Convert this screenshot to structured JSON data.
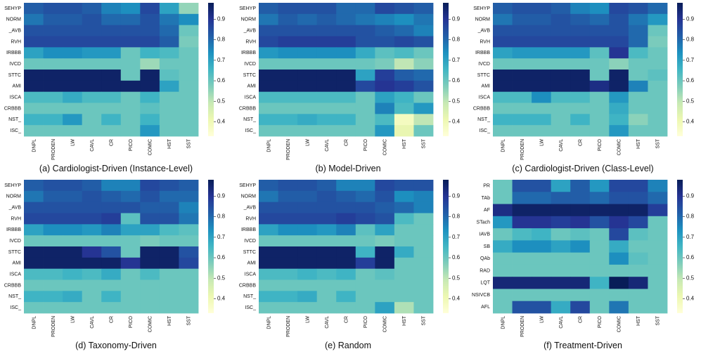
{
  "colormap": {
    "name": "YlGnBu",
    "stops": [
      "#ffffd9",
      "#edf8b1",
      "#c7e9b4",
      "#7fcdbb",
      "#41b6c4",
      "#1d91c0",
      "#225ea8",
      "#253494",
      "#081d58"
    ],
    "vmin": 0.33,
    "vmax": 0.98,
    "ticks": [
      "0.4",
      "0.5",
      "0.6",
      "0.7",
      "0.8",
      "0.9"
    ]
  },
  "chart_data": [
    {
      "type": "heatmap",
      "title": "(a) Cardiologist-Driven (Instance-Level)",
      "xlabels": [
        "DNPL",
        "PRODEN",
        "LW",
        "CAVL",
        "CR",
        "PICO",
        "COMIC",
        "HST",
        "SST"
      ],
      "ylabels": [
        "SEHYP",
        "NORM",
        "_AVB",
        "RVH",
        "IRBBB",
        "IVCD",
        "STTC",
        "AMI",
        "ISCA",
        "CRBBB",
        "NST_",
        "ISC_"
      ],
      "values": [
        [
          0.82,
          0.84,
          0.84,
          0.82,
          0.76,
          0.74,
          0.86,
          0.7,
          0.55
        ],
        [
          0.78,
          0.82,
          0.82,
          0.84,
          0.8,
          0.8,
          0.84,
          0.78,
          0.74
        ],
        [
          0.84,
          0.84,
          0.84,
          0.84,
          0.84,
          0.84,
          0.84,
          0.8,
          0.6
        ],
        [
          0.86,
          0.86,
          0.86,
          0.86,
          0.86,
          0.86,
          0.86,
          0.82,
          0.58
        ],
        [
          0.7,
          0.74,
          0.74,
          0.72,
          0.72,
          0.6,
          0.66,
          0.64,
          0.6
        ],
        [
          0.6,
          0.6,
          0.6,
          0.6,
          0.6,
          0.6,
          0.54,
          0.6,
          0.6
        ],
        [
          0.96,
          0.96,
          0.96,
          0.96,
          0.96,
          0.6,
          0.96,
          0.62,
          0.6
        ],
        [
          0.96,
          0.96,
          0.96,
          0.96,
          0.96,
          0.96,
          0.96,
          0.7,
          0.6
        ],
        [
          0.64,
          0.64,
          0.68,
          0.64,
          0.64,
          0.6,
          0.66,
          0.6,
          0.6
        ],
        [
          0.6,
          0.6,
          0.6,
          0.6,
          0.6,
          0.6,
          0.62,
          0.6,
          0.6
        ],
        [
          0.66,
          0.66,
          0.72,
          0.6,
          0.66,
          0.6,
          0.66,
          0.6,
          0.6
        ],
        [
          0.6,
          0.6,
          0.6,
          0.6,
          0.6,
          0.6,
          0.72,
          0.6,
          0.6
        ]
      ]
    },
    {
      "type": "heatmap",
      "title": "(b) Model-Driven",
      "xlabels": [
        "DNPL",
        "PRODEN",
        "LW",
        "CAVL",
        "CR",
        "PICO",
        "COMIC",
        "HST",
        "SST"
      ],
      "ylabels": [
        "SEHYP",
        "NORM",
        "_AVB",
        "RVH",
        "IRBBB",
        "IVCD",
        "STTC",
        "AMI",
        "ISCA",
        "CRBBB",
        "NST_",
        "ISC_"
      ],
      "values": [
        [
          0.82,
          0.84,
          0.84,
          0.84,
          0.8,
          0.8,
          0.86,
          0.84,
          0.82
        ],
        [
          0.78,
          0.82,
          0.8,
          0.82,
          0.8,
          0.78,
          0.76,
          0.74,
          0.78
        ],
        [
          0.84,
          0.84,
          0.84,
          0.84,
          0.84,
          0.84,
          0.82,
          0.8,
          0.76
        ],
        [
          0.86,
          0.88,
          0.88,
          0.88,
          0.88,
          0.84,
          0.84,
          0.86,
          0.84
        ],
        [
          0.72,
          0.74,
          0.74,
          0.74,
          0.74,
          0.68,
          0.62,
          0.64,
          0.6
        ],
        [
          0.6,
          0.6,
          0.6,
          0.6,
          0.6,
          0.6,
          0.58,
          0.5,
          0.56
        ],
        [
          0.96,
          0.96,
          0.96,
          0.96,
          0.96,
          0.7,
          0.88,
          0.82,
          0.8
        ],
        [
          0.96,
          0.96,
          0.96,
          0.96,
          0.96,
          0.86,
          0.9,
          0.88,
          0.84
        ],
        [
          0.64,
          0.64,
          0.64,
          0.64,
          0.64,
          0.6,
          0.7,
          0.66,
          0.6
        ],
        [
          0.6,
          0.6,
          0.6,
          0.6,
          0.6,
          0.6,
          0.76,
          0.64,
          0.72
        ],
        [
          0.66,
          0.66,
          0.68,
          0.66,
          0.66,
          0.6,
          0.64,
          0.38,
          0.5
        ],
        [
          0.6,
          0.6,
          0.6,
          0.6,
          0.6,
          0.6,
          0.72,
          0.42,
          0.6
        ]
      ]
    },
    {
      "type": "heatmap",
      "title": "(c) Cardiologist-Driven (Class-Level)",
      "xlabels": [
        "DNPL",
        "PRODEN",
        "LW",
        "CAVL",
        "CR",
        "PICO",
        "COMIC",
        "HST",
        "SST"
      ],
      "ylabels": [
        "SEHYP",
        "NORM",
        "_AVB",
        "RVH",
        "IRBBB",
        "IVCD",
        "STTC",
        "AMI",
        "ISCA",
        "CRBBB",
        "NST_",
        "ISC_"
      ],
      "values": [
        [
          0.82,
          0.84,
          0.84,
          0.82,
          0.76,
          0.74,
          0.86,
          0.84,
          0.8
        ],
        [
          0.78,
          0.82,
          0.82,
          0.84,
          0.82,
          0.8,
          0.84,
          0.78,
          0.72
        ],
        [
          0.84,
          0.84,
          0.84,
          0.84,
          0.84,
          0.84,
          0.84,
          0.8,
          0.6
        ],
        [
          0.86,
          0.86,
          0.86,
          0.86,
          0.86,
          0.86,
          0.86,
          0.8,
          0.58
        ],
        [
          0.7,
          0.72,
          0.72,
          0.72,
          0.72,
          0.62,
          0.9,
          0.64,
          0.6
        ],
        [
          0.6,
          0.6,
          0.6,
          0.6,
          0.6,
          0.6,
          0.56,
          0.6,
          0.6
        ],
        [
          0.96,
          0.96,
          0.96,
          0.96,
          0.96,
          0.6,
          0.96,
          0.6,
          0.62
        ],
        [
          0.96,
          0.96,
          0.96,
          0.96,
          0.96,
          0.92,
          0.96,
          0.76,
          0.6
        ],
        [
          0.64,
          0.64,
          0.74,
          0.64,
          0.64,
          0.6,
          0.72,
          0.6,
          0.6
        ],
        [
          0.6,
          0.6,
          0.6,
          0.6,
          0.6,
          0.6,
          0.68,
          0.6,
          0.6
        ],
        [
          0.66,
          0.66,
          0.66,
          0.6,
          0.66,
          0.6,
          0.66,
          0.56,
          0.6
        ],
        [
          0.6,
          0.6,
          0.6,
          0.6,
          0.6,
          0.6,
          0.72,
          0.6,
          0.6
        ]
      ]
    },
    {
      "type": "heatmap",
      "title": "(d) Taxonomy-Driven",
      "xlabels": [
        "DNPL",
        "PRODEN",
        "LW",
        "CAVL",
        "CR",
        "PICO",
        "COMIC",
        "HST",
        "SST"
      ],
      "ylabels": [
        "SEHYP",
        "NORM",
        "_AVB",
        "RVH",
        "IRBBB",
        "IVCD",
        "STTC",
        "AMI",
        "ISCA",
        "CRBBB",
        "NST_",
        "ISC_"
      ],
      "values": [
        [
          0.82,
          0.84,
          0.84,
          0.82,
          0.76,
          0.76,
          0.86,
          0.84,
          0.82
        ],
        [
          0.78,
          0.82,
          0.82,
          0.84,
          0.82,
          0.8,
          0.84,
          0.8,
          0.8
        ],
        [
          0.84,
          0.84,
          0.84,
          0.84,
          0.84,
          0.84,
          0.82,
          0.82,
          0.76
        ],
        [
          0.86,
          0.86,
          0.86,
          0.86,
          0.88,
          0.62,
          0.84,
          0.84,
          0.78
        ],
        [
          0.7,
          0.74,
          0.74,
          0.72,
          0.76,
          0.7,
          0.7,
          0.64,
          0.62
        ],
        [
          0.6,
          0.6,
          0.6,
          0.6,
          0.6,
          0.6,
          0.58,
          0.6,
          0.6
        ],
        [
          0.96,
          0.96,
          0.96,
          0.9,
          0.84,
          0.6,
          0.96,
          0.96,
          0.84
        ],
        [
          0.96,
          0.96,
          0.96,
          0.96,
          0.96,
          0.9,
          0.96,
          0.96,
          0.86
        ],
        [
          0.64,
          0.64,
          0.66,
          0.64,
          0.68,
          0.6,
          0.64,
          0.6,
          0.6
        ],
        [
          0.6,
          0.6,
          0.6,
          0.6,
          0.6,
          0.6,
          0.6,
          0.6,
          0.6
        ],
        [
          0.66,
          0.66,
          0.68,
          0.6,
          0.66,
          0.6,
          0.6,
          0.6,
          0.6
        ],
        [
          0.6,
          0.6,
          0.6,
          0.6,
          0.6,
          0.6,
          0.6,
          0.6,
          0.6
        ]
      ]
    },
    {
      "type": "heatmap",
      "title": "(e) Random",
      "xlabels": [
        "DNPL",
        "PRODEN",
        "LW",
        "CAVL",
        "CR",
        "PICO",
        "COMIC",
        "HST",
        "SST"
      ],
      "ylabels": [
        "SEHYP",
        "NORM",
        "_AVB",
        "RVH",
        "IRBBB",
        "IVCD",
        "STTC",
        "AMI",
        "ISCA",
        "CRBBB",
        "NST_",
        "ISC_"
      ],
      "values": [
        [
          0.82,
          0.84,
          0.84,
          0.82,
          0.76,
          0.76,
          0.86,
          0.84,
          0.84
        ],
        [
          0.78,
          0.82,
          0.82,
          0.84,
          0.82,
          0.8,
          0.84,
          0.74,
          0.76
        ],
        [
          0.84,
          0.84,
          0.84,
          0.84,
          0.84,
          0.84,
          0.82,
          0.8,
          0.76
        ],
        [
          0.86,
          0.86,
          0.86,
          0.86,
          0.88,
          0.86,
          0.84,
          0.64,
          0.6
        ],
        [
          0.7,
          0.74,
          0.74,
          0.72,
          0.76,
          0.62,
          0.7,
          0.6,
          0.6
        ],
        [
          0.6,
          0.6,
          0.6,
          0.6,
          0.6,
          0.6,
          0.58,
          0.6,
          0.6
        ],
        [
          0.96,
          0.96,
          0.96,
          0.96,
          0.96,
          0.66,
          0.96,
          0.68,
          0.6
        ],
        [
          0.96,
          0.96,
          0.96,
          0.96,
          0.96,
          0.88,
          0.96,
          0.6,
          0.6
        ],
        [
          0.64,
          0.64,
          0.66,
          0.64,
          0.66,
          0.6,
          0.62,
          0.6,
          0.6
        ],
        [
          0.6,
          0.6,
          0.6,
          0.6,
          0.6,
          0.6,
          0.6,
          0.6,
          0.6
        ],
        [
          0.66,
          0.66,
          0.68,
          0.6,
          0.66,
          0.6,
          0.6,
          0.6,
          0.6
        ],
        [
          0.6,
          0.6,
          0.6,
          0.6,
          0.6,
          0.6,
          0.7,
          0.52,
          0.6
        ]
      ]
    },
    {
      "type": "heatmap",
      "title": "(f) Treatment-Driven",
      "xlabels": [
        "DNPL",
        "PRODEN",
        "LW",
        "CAVL",
        "CR",
        "PICO",
        "COMIC",
        "HST",
        "SST"
      ],
      "ylabels": [
        "PR",
        "TAb",
        "AF",
        "STach",
        "IAVB",
        "SB",
        "QAb",
        "RAD",
        "LQT",
        "NSIVCB",
        "AFL"
      ],
      "values": [
        [
          0.6,
          0.84,
          0.84,
          0.7,
          0.82,
          0.72,
          0.86,
          0.86,
          0.76
        ],
        [
          0.6,
          0.8,
          0.8,
          0.82,
          0.82,
          0.8,
          0.84,
          0.84,
          0.8
        ],
        [
          0.92,
          0.96,
          0.96,
          0.96,
          0.96,
          0.96,
          0.96,
          0.96,
          0.88
        ],
        [
          0.72,
          0.9,
          0.9,
          0.88,
          0.9,
          0.84,
          0.9,
          0.86,
          0.6
        ],
        [
          0.6,
          0.64,
          0.66,
          0.6,
          0.62,
          0.6,
          0.86,
          0.62,
          0.6
        ],
        [
          0.68,
          0.74,
          0.74,
          0.7,
          0.74,
          0.6,
          0.68,
          0.6,
          0.6
        ],
        [
          0.6,
          0.6,
          0.6,
          0.6,
          0.6,
          0.6,
          0.74,
          0.62,
          0.6
        ],
        [
          0.6,
          0.6,
          0.6,
          0.6,
          0.6,
          0.6,
          0.6,
          0.6,
          0.6
        ],
        [
          0.94,
          0.94,
          0.94,
          0.94,
          0.94,
          0.66,
          0.98,
          0.94,
          0.6
        ],
        [
          0.6,
          0.6,
          0.6,
          0.6,
          0.6,
          0.6,
          0.6,
          0.6,
          0.6
        ],
        [
          0.6,
          0.84,
          0.84,
          0.68,
          0.86,
          0.6,
          0.78,
          0.6,
          0.6
        ]
      ]
    }
  ]
}
